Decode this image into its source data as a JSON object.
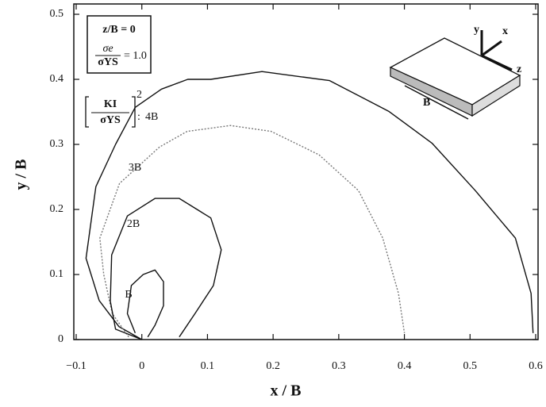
{
  "chart_data": {
    "type": "line",
    "xlabel": "x / B",
    "ylabel": "y / B",
    "xlim": [
      -0.1,
      0.6
    ],
    "ylim": [
      0,
      0.5
    ],
    "xticks": [
      {
        "value": -0.1,
        "label": "−0.1"
      },
      0,
      0.1,
      0.2,
      0.3,
      0.4,
      0.5,
      0.6
    ],
    "yticks": [
      0,
      0.1,
      0.2,
      0.3,
      0.4,
      0.5
    ],
    "condition_box": {
      "line1": "z/B = 0",
      "numerator": "σe",
      "denominator": "σYS",
      "value": "= 1.0"
    },
    "factor": {
      "numerator": "KI",
      "denominator": "σYS",
      "power": "2",
      "separator": ":"
    },
    "inset": {
      "y": "y",
      "x": "x",
      "z": "z",
      "width": "B"
    },
    "series": [
      {
        "name": "4B",
        "color": "#111111",
        "dashed": false,
        "x": [
          0.0,
          -0.035,
          -0.065,
          -0.085,
          -0.07,
          -0.04,
          -0.01,
          0.03,
          0.07,
          0.105,
          0.183,
          0.286,
          0.376,
          0.442,
          0.508,
          0.569,
          0.593,
          0.596
        ],
        "values": [
          0.0,
          0.02,
          0.06,
          0.125,
          0.235,
          0.3,
          0.357,
          0.385,
          0.4,
          0.4,
          0.412,
          0.398,
          0.351,
          0.302,
          0.229,
          0.156,
          0.071,
          0.01
        ]
      },
      {
        "name": "3B",
        "color": "#777777",
        "dashed": true,
        "x": [
          -0.02,
          -0.045,
          -0.058,
          -0.064,
          -0.034,
          0.027,
          0.069,
          0.135,
          0.197,
          0.27,
          0.33,
          0.367,
          0.391,
          0.4
        ],
        "values": [
          0.004,
          0.04,
          0.1,
          0.156,
          0.24,
          0.296,
          0.32,
          0.329,
          0.32,
          0.284,
          0.229,
          0.156,
          0.071,
          0.01
        ]
      },
      {
        "name": "2B",
        "color": "#111111",
        "dashed": false,
        "x": [
          0.0,
          -0.04,
          -0.048,
          -0.046,
          -0.022,
          0.02,
          0.057,
          0.105,
          0.121,
          0.109,
          0.081,
          0.057
        ],
        "values": [
          0.0,
          0.016,
          0.059,
          0.13,
          0.19,
          0.217,
          0.217,
          0.187,
          0.138,
          0.083,
          0.04,
          0.004
        ]
      },
      {
        "name": "B",
        "color": "#111111",
        "dashed": false,
        "x": [
          -0.01,
          -0.022,
          -0.016,
          0.002,
          0.02,
          0.033,
          0.033,
          0.02,
          0.009
        ],
        "values": [
          0.01,
          0.04,
          0.083,
          0.1,
          0.107,
          0.089,
          0.052,
          0.022,
          0.004
        ]
      }
    ]
  }
}
